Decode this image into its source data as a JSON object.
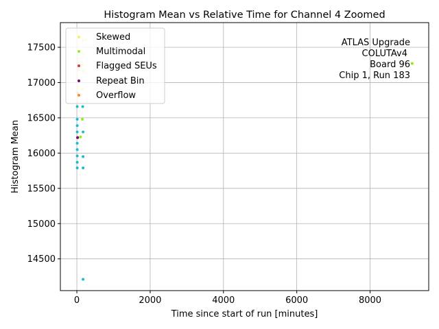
{
  "chart_data": {
    "type": "scatter",
    "title": "Histogram Mean vs Relative Time for Channel 4 Zoomed",
    "xlabel": "Time since start of run [minutes]",
    "ylabel": "Histogram Mean",
    "xlim": [
      -450,
      9600
    ],
    "ylim": [
      14050,
      17850
    ],
    "xticks": [
      0,
      2000,
      4000,
      6000,
      8000
    ],
    "yticks": [
      14500,
      15000,
      15500,
      16000,
      16500,
      17000,
      17500
    ],
    "grid": true,
    "legend_position": "top-left",
    "annotation_lines": [
      "ATLAS Upgrade",
      "COLUTAv4",
      "Board 96",
      "Chip 1, Run 183"
    ],
    "series": [
      {
        "name": "Skewed",
        "color": "#f2f25a",
        "points": [
          {
            "x": 10,
            "y": 17680
          },
          {
            "x": 160,
            "y": 17600
          },
          {
            "x": 240,
            "y": 17610
          },
          {
            "x": 20,
            "y": 17520
          },
          {
            "x": 170,
            "y": 17400
          },
          {
            "x": 10,
            "y": 17330
          },
          {
            "x": 160,
            "y": 17250
          },
          {
            "x": 10,
            "y": 17170
          },
          {
            "x": 170,
            "y": 17160
          },
          {
            "x": 10,
            "y": 17090
          },
          {
            "x": 20,
            "y": 16930
          },
          {
            "x": 160,
            "y": 16910
          },
          {
            "x": 10,
            "y": 16780
          }
        ]
      },
      {
        "name": "Multimodal",
        "color": "#9be81a",
        "points": [
          {
            "x": 9150,
            "y": 17270
          },
          {
            "x": 150,
            "y": 16480
          },
          {
            "x": 100,
            "y": 16230
          }
        ]
      },
      {
        "name": "Flagged SEUs",
        "color": "#d63a3a",
        "points": [
          {
            "x": 20,
            "y": 16220
          }
        ]
      },
      {
        "name": "Repeat Bin",
        "color": "#6b0f6b",
        "points": [
          {
            "x": 20,
            "y": 16220
          }
        ]
      },
      {
        "name": "Overflow",
        "color": "#f08a2a",
        "points": [
          {
            "x": 20,
            "y": 16850
          }
        ]
      },
      {
        "name": "",
        "color": "#17becf",
        "points": [
          {
            "x": 10,
            "y": 16660
          },
          {
            "x": 160,
            "y": 16660
          },
          {
            "x": 10,
            "y": 16480
          },
          {
            "x": 10,
            "y": 16390
          },
          {
            "x": 10,
            "y": 16300
          },
          {
            "x": 170,
            "y": 16300
          },
          {
            "x": 10,
            "y": 16140
          },
          {
            "x": 10,
            "y": 16050
          },
          {
            "x": 10,
            "y": 15960
          },
          {
            "x": 170,
            "y": 15950
          },
          {
            "x": 10,
            "y": 15870
          },
          {
            "x": 10,
            "y": 15790
          },
          {
            "x": 170,
            "y": 15790
          },
          {
            "x": 170,
            "y": 14210
          }
        ]
      }
    ]
  }
}
